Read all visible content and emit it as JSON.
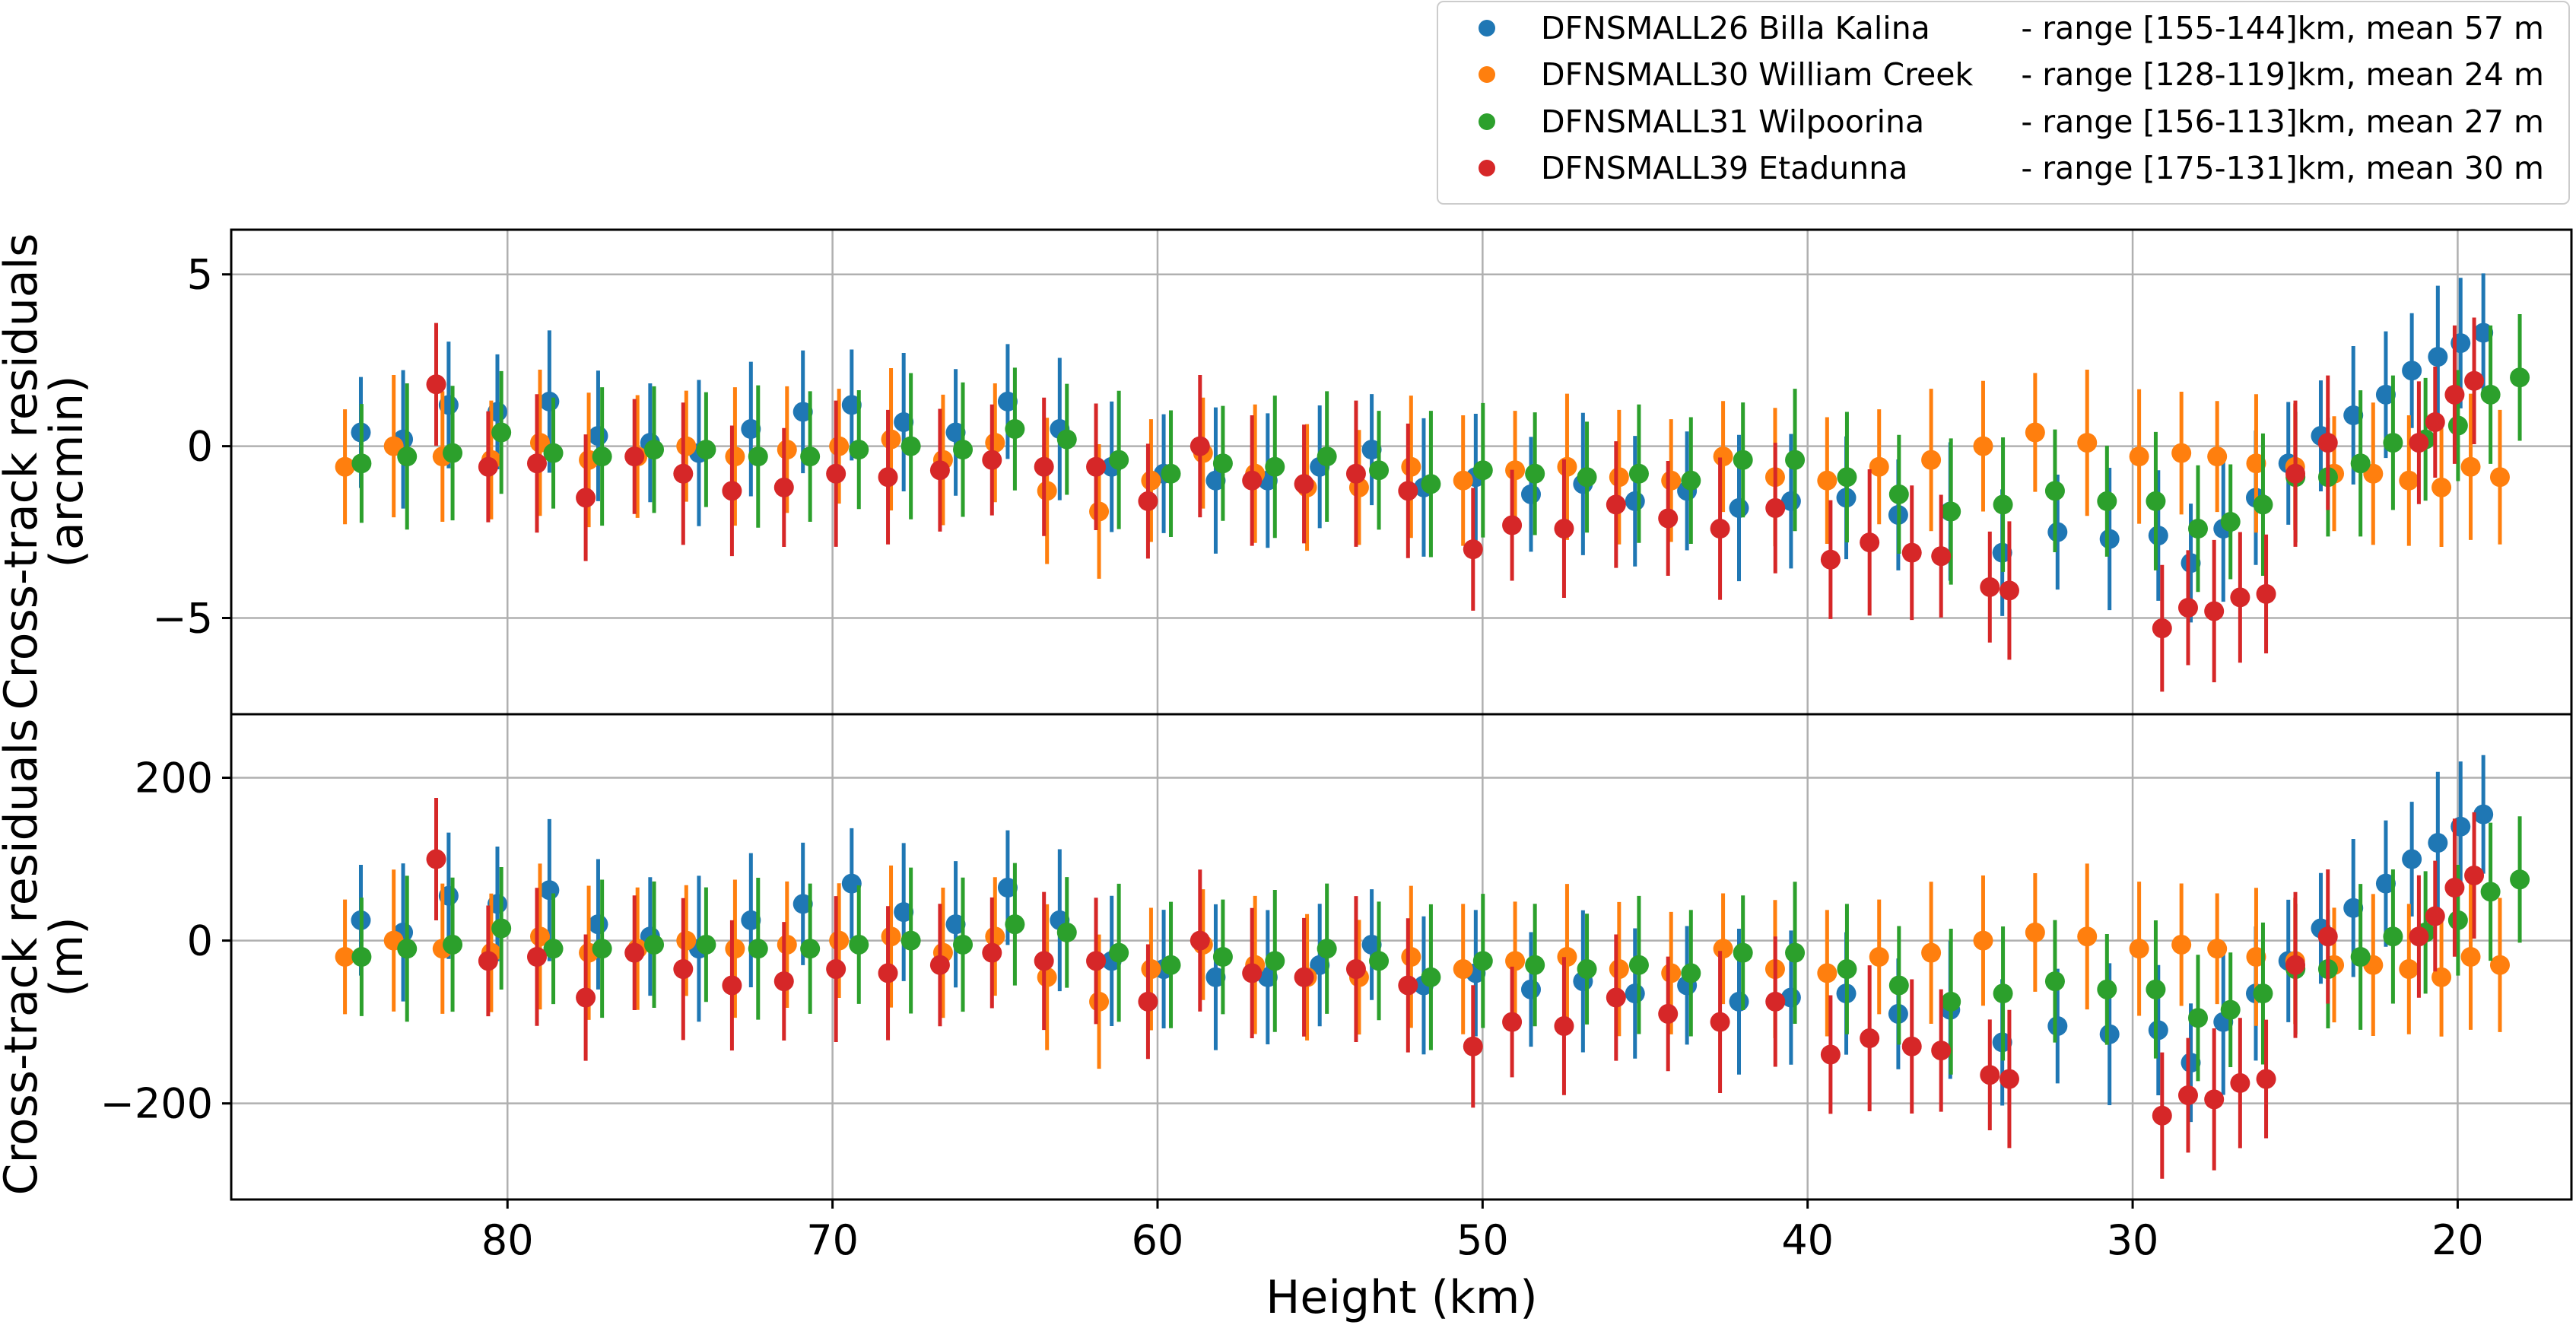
{
  "chart_data": [
    {
      "type": "scatter",
      "panel": "top",
      "ylabel_lines": [
        "Cross-track residuals",
        "(arcmin)"
      ],
      "xlabel": "",
      "xlim": [
        88.5,
        16.5
      ],
      "ylim": [
        -7.8,
        6.3
      ],
      "x_ticks": [
        80,
        70,
        60,
        50,
        40,
        30,
        20
      ],
      "y_ticks": [
        -5,
        0,
        5
      ],
      "y_tick_labels": [
        "−5",
        "0",
        "5"
      ],
      "gridlines_y": [
        -5,
        0,
        5
      ],
      "grid": true,
      "errorbar_half_width_typical": 1.9,
      "series": [
        {
          "name": "DFNSMALL26 Billa Kalina",
          "color": "#1f77b4",
          "x": [
            84.3,
            83.0,
            81.6,
            80.1,
            78.5,
            77.0,
            75.4,
            73.9,
            72.3,
            70.7,
            69.2,
            67.6,
            66.0,
            64.4,
            62.8,
            61.2,
            59.6,
            58.0,
            56.4,
            54.8,
            53.2,
            51.6,
            50.0,
            48.3,
            46.7,
            45.1,
            43.5,
            41.9,
            40.3,
            38.6,
            37.0,
            35.4,
            33.8,
            32.1,
            30.5,
            29.0,
            28.0,
            27.0,
            26.0,
            25.0,
            24.0,
            23.0,
            22.0,
            21.2,
            20.4,
            19.7,
            19.0
          ],
          "y": [
            0.4,
            0.2,
            1.2,
            1.0,
            1.3,
            0.3,
            0.1,
            -0.2,
            0.5,
            1.0,
            1.2,
            0.7,
            0.4,
            1.3,
            0.5,
            -0.6,
            -0.8,
            -1.0,
            -1.0,
            -0.6,
            -0.1,
            -1.2,
            -0.9,
            -1.4,
            -1.1,
            -1.6,
            -1.3,
            -1.8,
            -1.6,
            -1.5,
            -2.0,
            -1.9,
            -3.1,
            -2.5,
            -2.7,
            -2.6,
            -3.4,
            -2.4,
            -1.5,
            -0.5,
            0.3,
            0.9,
            1.5,
            2.2,
            2.6,
            3.0,
            3.3
          ]
        },
        {
          "name": "DFNSMALL30 William Creek",
          "color": "#ff7f0e",
          "x": [
            85.0,
            83.5,
            82.0,
            80.5,
            79.0,
            77.5,
            76.0,
            74.5,
            73.0,
            71.4,
            69.8,
            68.2,
            66.6,
            65.0,
            63.4,
            61.8,
            60.2,
            58.6,
            57.0,
            55.4,
            53.8,
            52.2,
            50.6,
            49.0,
            47.4,
            45.8,
            44.2,
            42.6,
            41.0,
            39.4,
            37.8,
            36.2,
            34.6,
            33.0,
            31.4,
            29.8,
            28.5,
            27.4,
            26.2,
            25.0,
            23.8,
            22.6,
            21.5,
            20.5,
            19.6,
            18.7
          ],
          "y": [
            -0.6,
            0.0,
            -0.3,
            -0.4,
            0.1,
            -0.4,
            -0.3,
            0.0,
            -0.3,
            -0.1,
            0.0,
            0.2,
            -0.4,
            0.1,
            -1.3,
            -1.9,
            -1.0,
            -0.2,
            -0.8,
            -1.2,
            -1.2,
            -0.6,
            -1.0,
            -0.7,
            -0.6,
            -0.9,
            -1.0,
            -0.3,
            -0.9,
            -1.0,
            -0.6,
            -0.4,
            0.0,
            0.4,
            0.1,
            -0.3,
            -0.2,
            -0.3,
            -0.5,
            -0.6,
            -0.8,
            -0.8,
            -1.0,
            -1.2,
            -0.6,
            -0.9
          ]
        },
        {
          "name": "DFNSMALL31 Wilpoorina",
          "color": "#2ca02c",
          "x": [
            84.7,
            83.3,
            81.9,
            80.4,
            78.8,
            77.3,
            75.7,
            74.1,
            72.5,
            70.9,
            69.4,
            67.8,
            66.2,
            64.6,
            63.0,
            61.4,
            59.8,
            58.2,
            56.6,
            55.0,
            53.4,
            51.8,
            50.2,
            48.6,
            47.0,
            45.4,
            43.8,
            42.2,
            40.6,
            39.0,
            37.4,
            35.8,
            34.2,
            32.6,
            31.0,
            29.5,
            28.2,
            27.2,
            26.2,
            25.2,
            24.2,
            23.2,
            22.2,
            21.2,
            20.2,
            19.2,
            18.3
          ],
          "y": [
            -0.5,
            -0.3,
            -0.2,
            0.4,
            -0.2,
            -0.3,
            -0.1,
            -0.1,
            -0.3,
            -0.3,
            -0.1,
            0.0,
            -0.1,
            0.5,
            0.2,
            -0.4,
            -0.8,
            -0.5,
            -0.6,
            -0.3,
            -0.7,
            -1.1,
            -0.7,
            -0.8,
            -0.9,
            -0.8,
            -1.0,
            -0.4,
            -0.4,
            -0.9,
            -1.4,
            -1.9,
            -1.7,
            -1.3,
            -1.6,
            -1.6,
            -2.4,
            -2.2,
            -1.7,
            -0.9,
            -0.9,
            -0.5,
            0.1,
            0.2,
            0.6,
            1.5,
            2.0
          ]
        },
        {
          "name": "DFNSMALL39 Etadunna",
          "color": "#d62728",
          "x": [
            82.1,
            80.5,
            79.0,
            77.5,
            76.0,
            74.5,
            73.0,
            71.4,
            69.8,
            68.2,
            66.6,
            65.0,
            63.4,
            61.8,
            60.2,
            58.6,
            57.0,
            55.4,
            53.8,
            52.2,
            50.2,
            49.0,
            47.4,
            45.8,
            44.2,
            42.6,
            40.9,
            39.2,
            38.0,
            36.7,
            35.8,
            34.3,
            33.7,
            29.0,
            28.2,
            27.4,
            26.6,
            25.8,
            24.9,
            23.9,
            21.1,
            20.6,
            20.0,
            19.4
          ],
          "y": [
            1.8,
            -0.6,
            -0.5,
            -1.5,
            -0.3,
            -0.8,
            -1.3,
            -1.2,
            -0.8,
            -0.9,
            -0.7,
            -0.4,
            -0.6,
            -0.6,
            -1.6,
            0.0,
            -1.0,
            -1.1,
            -0.8,
            -1.3,
            -3.0,
            -2.3,
            -2.4,
            -1.7,
            -2.1,
            -2.4,
            -1.8,
            -3.3,
            -2.8,
            -3.1,
            -3.2,
            -4.1,
            -4.2,
            -5.3,
            -4.7,
            -4.8,
            -4.4,
            -4.3,
            -0.8,
            0.1,
            0.1,
            0.7,
            1.5,
            1.9
          ]
        }
      ]
    },
    {
      "type": "scatter",
      "panel": "bottom",
      "ylabel_lines": [
        "Cross-track residuals",
        "(m)"
      ],
      "xlabel": "Height (km)",
      "xlim": [
        88.5,
        16.5
      ],
      "ylim": [
        -318,
        278
      ],
      "x_ticks": [
        80,
        70,
        60,
        50,
        40,
        30,
        20
      ],
      "x_tick_labels": [
        "80",
        "70",
        "60",
        "50",
        "40",
        "30",
        "20"
      ],
      "y_ticks": [
        -200,
        0,
        200
      ],
      "y_tick_labels": [
        "−200",
        "0",
        "200"
      ],
      "gridlines_y": [
        -200,
        0,
        200
      ],
      "grid": true,
      "errorbar_half_width_typical": 80,
      "series": [
        {
          "name": "DFNSMALL26 Billa Kalina",
          "color": "#1f77b4",
          "x": [
            84.3,
            83.0,
            81.6,
            80.1,
            78.5,
            77.0,
            75.4,
            73.9,
            72.3,
            70.7,
            69.2,
            67.6,
            66.0,
            64.4,
            62.8,
            61.2,
            59.6,
            58.0,
            56.4,
            54.8,
            53.2,
            51.6,
            50.0,
            48.3,
            46.7,
            45.1,
            43.5,
            41.9,
            40.3,
            38.6,
            37.0,
            35.4,
            33.8,
            32.1,
            30.5,
            29.0,
            28.0,
            27.0,
            26.0,
            25.0,
            24.0,
            23.0,
            22.0,
            21.2,
            20.4,
            19.7,
            19.0
          ],
          "y": [
            25,
            10,
            55,
            45,
            62,
            20,
            5,
            -10,
            25,
            45,
            70,
            35,
            20,
            65,
            25,
            -25,
            -35,
            -45,
            -45,
            -30,
            -5,
            -55,
            -40,
            -60,
            -50,
            -65,
            -55,
            -75,
            -70,
            -65,
            -90,
            -85,
            -125,
            -105,
            -115,
            -110,
            -150,
            -100,
            -65,
            -25,
            15,
            40,
            70,
            100,
            120,
            140,
            155
          ]
        },
        {
          "name": "DFNSMALL30 William Creek",
          "color": "#ff7f0e",
          "x": [
            85.0,
            83.5,
            82.0,
            80.5,
            79.0,
            77.5,
            76.0,
            74.5,
            73.0,
            71.4,
            69.8,
            68.2,
            66.6,
            65.0,
            63.4,
            61.8,
            60.2,
            58.6,
            57.0,
            55.4,
            53.8,
            52.2,
            50.6,
            49.0,
            47.4,
            45.8,
            44.2,
            42.6,
            41.0,
            39.4,
            37.8,
            36.2,
            34.6,
            33.0,
            31.4,
            29.8,
            28.5,
            27.4,
            26.2,
            25.0,
            23.8,
            22.6,
            21.5,
            20.5,
            19.6,
            18.7
          ],
          "y": [
            -20,
            0,
            -10,
            -15,
            5,
            -15,
            -10,
            0,
            -10,
            -5,
            0,
            5,
            -15,
            5,
            -45,
            -75,
            -35,
            -5,
            -30,
            -45,
            -45,
            -20,
            -35,
            -25,
            -20,
            -35,
            -40,
            -10,
            -35,
            -40,
            -20,
            -15,
            0,
            10,
            5,
            -10,
            -5,
            -10,
            -20,
            -25,
            -30,
            -30,
            -35,
            -45,
            -20,
            -30
          ]
        },
        {
          "name": "DFNSMALL31 Wilpoorina",
          "color": "#2ca02c",
          "x": [
            84.7,
            83.3,
            81.9,
            80.4,
            78.8,
            77.3,
            75.7,
            74.1,
            72.5,
            70.9,
            69.4,
            67.8,
            66.2,
            64.6,
            63.0,
            61.4,
            59.8,
            58.2,
            56.6,
            55.0,
            53.4,
            51.8,
            50.2,
            48.6,
            47.0,
            45.4,
            43.8,
            42.2,
            40.6,
            39.0,
            37.4,
            35.8,
            34.2,
            32.6,
            31.0,
            29.5,
            28.2,
            27.2,
            26.2,
            25.2,
            24.2,
            23.2,
            22.2,
            21.2,
            20.2,
            19.2,
            18.3
          ],
          "y": [
            -20,
            -10,
            -5,
            15,
            -10,
            -10,
            -5,
            -5,
            -10,
            -10,
            -5,
            0,
            -5,
            20,
            10,
            -15,
            -30,
            -20,
            -25,
            -10,
            -25,
            -45,
            -25,
            -30,
            -35,
            -30,
            -40,
            -15,
            -15,
            -35,
            -55,
            -75,
            -65,
            -50,
            -60,
            -60,
            -95,
            -85,
            -65,
            -35,
            -35,
            -20,
            5,
            10,
            25,
            60,
            75
          ]
        },
        {
          "name": "DFNSMALL39 Etadunna",
          "color": "#d62728",
          "x": [
            82.1,
            80.5,
            79.0,
            77.5,
            76.0,
            74.5,
            73.0,
            71.4,
            69.8,
            68.2,
            66.6,
            65.0,
            63.4,
            61.8,
            60.2,
            58.6,
            57.0,
            55.4,
            53.8,
            52.2,
            50.2,
            49.0,
            47.4,
            45.8,
            44.2,
            42.6,
            40.9,
            39.2,
            38.0,
            36.7,
            35.8,
            34.3,
            33.7,
            29.0,
            28.2,
            27.4,
            26.6,
            25.8,
            24.9,
            23.9,
            21.1,
            20.6,
            20.0,
            19.4
          ],
          "y": [
            100,
            -25,
            -20,
            -70,
            -15,
            -35,
            -55,
            -50,
            -35,
            -40,
            -30,
            -15,
            -25,
            -25,
            -75,
            0,
            -40,
            -45,
            -35,
            -55,
            -130,
            -100,
            -105,
            -70,
            -90,
            -100,
            -75,
            -140,
            -120,
            -130,
            -135,
            -165,
            -170,
            -215,
            -190,
            -195,
            -175,
            -170,
            -30,
            5,
            5,
            30,
            65,
            80
          ]
        }
      ]
    }
  ],
  "legend": {
    "location": "upper-right",
    "entries": [
      {
        "label": "DFNSMALL26 Billa Kalina",
        "detail": "- range [155-144]km, mean 57 m",
        "color": "#1f77b4"
      },
      {
        "label": "DFNSMALL30 William Creek",
        "detail": "- range [128-119]km, mean 24 m",
        "color": "#ff7f0e"
      },
      {
        "label": "DFNSMALL31 Wilpoorina",
        "detail": "- range [156-113]km, mean 27 m",
        "color": "#2ca02c"
      },
      {
        "label": "DFNSMALL39 Etadunna",
        "detail": "- range [175-131]km, mean 30 m",
        "color": "#d62728"
      }
    ]
  }
}
